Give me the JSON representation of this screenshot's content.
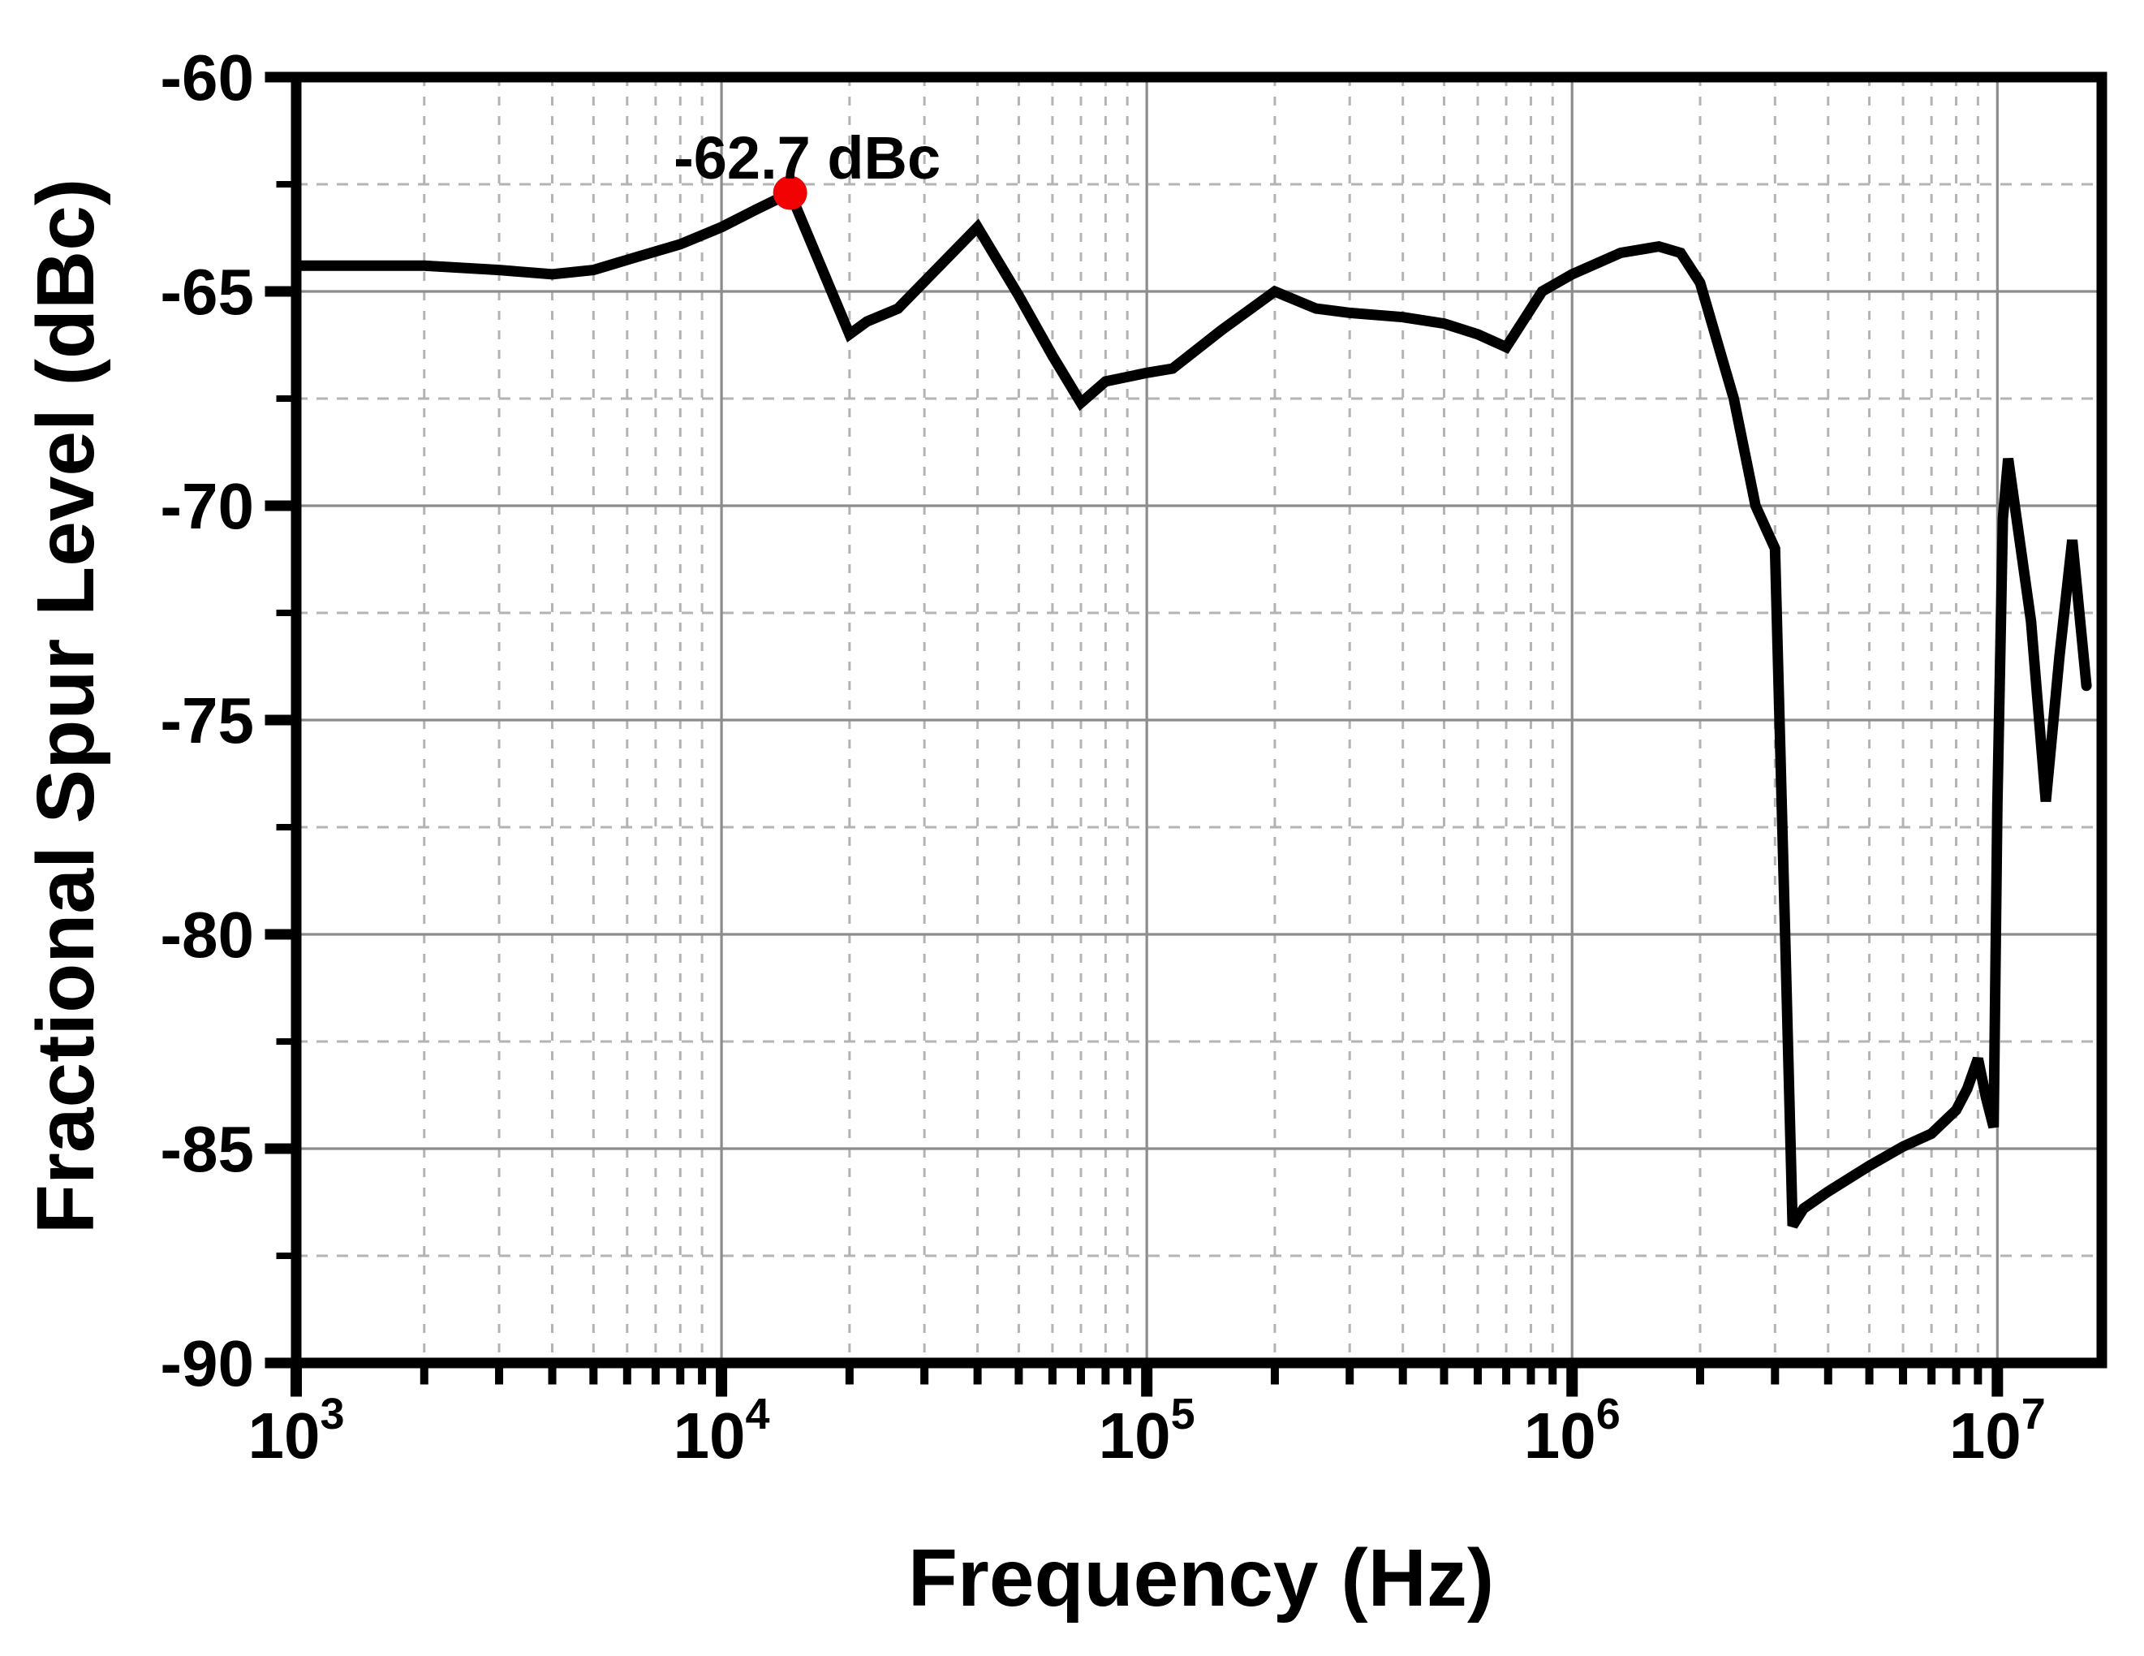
{
  "chart_data": {
    "type": "line",
    "title": "",
    "xlabel": "Frequency (Hz)",
    "ylabel": "Fractional Spur Level (dBc)",
    "x_scale": "log",
    "xlim": [
      1000,
      17600000
    ],
    "ylim": [
      -90,
      -60
    ],
    "x_major_ticks": [
      1000,
      10000,
      100000,
      1000000,
      10000000
    ],
    "x_tick_exponents": [
      "3",
      "4",
      "5",
      "6",
      "7"
    ],
    "y_major_ticks": [
      -60,
      -65,
      -70,
      -75,
      -80,
      -85,
      -90
    ],
    "y_tick_labels": [
      "-60",
      "-65",
      "-70",
      "-75",
      "-80",
      "-85",
      "-90"
    ],
    "grid": {
      "major_style": "solid",
      "minor_style": "dashed",
      "major_color": "#8c8c8c",
      "minor_color": "#b3b3b3"
    },
    "legend": null,
    "colors": {
      "curve": "#000000",
      "marker": "#f20202",
      "frame": "#000000",
      "text": "#000000",
      "background": "#ffffff"
    },
    "series": [
      {
        "name": "fractional-spur-level",
        "color": "#000000",
        "points": [
          [
            1000,
            -64.4
          ],
          [
            1500,
            -64.4
          ],
          [
            2000,
            -64.4
          ],
          [
            3000,
            -64.5
          ],
          [
            4000,
            -64.6
          ],
          [
            5000,
            -64.5
          ],
          [
            6300,
            -64.2
          ],
          [
            8000,
            -63.9
          ],
          [
            10000,
            -63.5
          ],
          [
            12000,
            -63.1
          ],
          [
            14500,
            -62.7
          ],
          [
            20000,
            -66.0
          ],
          [
            22000,
            -65.7
          ],
          [
            26000,
            -65.4
          ],
          [
            40000,
            -63.5
          ],
          [
            50000,
            -65.1
          ],
          [
            60000,
            -66.5
          ],
          [
            70000,
            -67.6
          ],
          [
            80000,
            -67.1
          ],
          [
            100000,
            -66.9
          ],
          [
            115000,
            -66.8
          ],
          [
            150000,
            -65.9
          ],
          [
            200000,
            -65.0
          ],
          [
            250000,
            -65.4
          ],
          [
            300000,
            -65.5
          ],
          [
            400000,
            -65.6
          ],
          [
            500000,
            -65.75
          ],
          [
            600000,
            -66.0
          ],
          [
            700000,
            -66.3
          ],
          [
            850000,
            -65.0
          ],
          [
            1000000,
            -64.6
          ],
          [
            1300000,
            -64.1
          ],
          [
            1600000,
            -63.95
          ],
          [
            1800000,
            -64.1
          ],
          [
            2000000,
            -64.8
          ],
          [
            2400000,
            -67.5
          ],
          [
            2700000,
            -70.0
          ],
          [
            3000000,
            -71.0
          ],
          [
            3150000,
            -79.0
          ],
          [
            3300000,
            -86.8
          ],
          [
            3500000,
            -86.4
          ],
          [
            4000000,
            -86.0
          ],
          [
            5000000,
            -85.4
          ],
          [
            6000000,
            -84.95
          ],
          [
            7000000,
            -84.65
          ],
          [
            8000000,
            -84.1
          ],
          [
            8500000,
            -83.6
          ],
          [
            9000000,
            -82.9
          ],
          [
            9400000,
            -83.8
          ],
          [
            9800000,
            -84.5
          ],
          [
            10000000,
            -77.0
          ],
          [
            10300000,
            -70.3
          ],
          [
            10600000,
            -68.9
          ],
          [
            12000000,
            -72.7
          ],
          [
            13000000,
            -76.9
          ],
          [
            14000000,
            -73.5
          ],
          [
            15000000,
            -70.8
          ],
          [
            16200000,
            -74.2
          ]
        ]
      }
    ],
    "marker": {
      "f": 14500,
      "dbc": -62.7,
      "color": "#f20202"
    },
    "annotation": {
      "text": "-62.7 dBc",
      "f": 15900,
      "dbc": -62.37
    }
  }
}
